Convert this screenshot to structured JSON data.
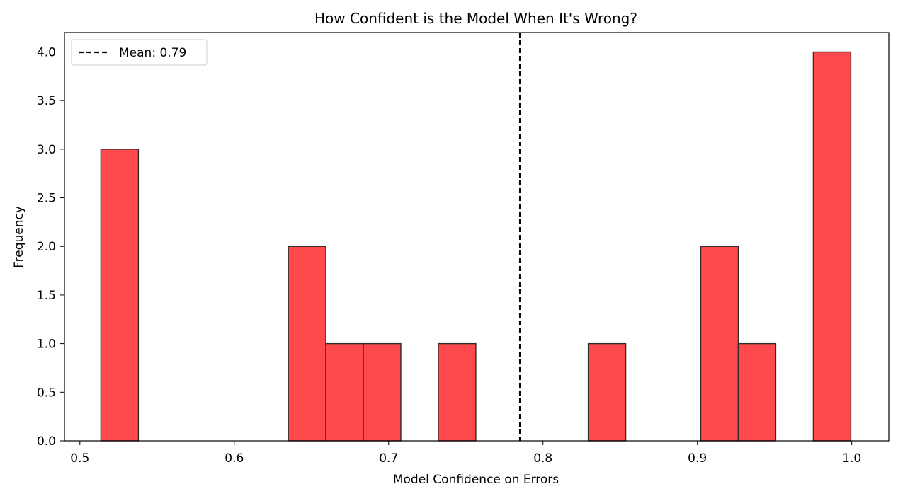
{
  "chart_data": {
    "type": "bar",
    "title": "How Confident is the Model When It's Wrong?",
    "xlabel": "Model Confidence on Errors",
    "ylabel": "Frequency",
    "xlim": [
      0.49,
      1.024
    ],
    "ylim": [
      0,
      4.2
    ],
    "xticks": [
      0.5,
      0.6,
      0.7,
      0.8,
      0.9,
      1.0
    ],
    "xtick_labels": [
      "0.5",
      "0.6",
      "0.7",
      "0.8",
      "0.9",
      "1.0"
    ],
    "yticks": [
      0.0,
      0.5,
      1.0,
      1.5,
      2.0,
      2.5,
      3.0,
      3.5,
      4.0
    ],
    "ytick_labels": [
      "0.0",
      "0.5",
      "1.0",
      "1.5",
      "2.0",
      "2.5",
      "3.0",
      "3.5",
      "4.0"
    ],
    "bins": [
      {
        "x0": 0.5136,
        "x1": 0.5379,
        "value": 3
      },
      {
        "x0": 0.635,
        "x1": 0.6593,
        "value": 2
      },
      {
        "x0": 0.6593,
        "x1": 0.6836,
        "value": 1
      },
      {
        "x0": 0.6836,
        "x1": 0.7079,
        "value": 1
      },
      {
        "x0": 0.7322,
        "x1": 0.7565,
        "value": 1
      },
      {
        "x0": 0.8293,
        "x1": 0.8536,
        "value": 1
      },
      {
        "x0": 0.9022,
        "x1": 0.9265,
        "value": 2
      },
      {
        "x0": 0.9265,
        "x1": 0.9508,
        "value": 1
      },
      {
        "x0": 0.9751,
        "x1": 0.9994,
        "value": 4
      }
    ],
    "bar_color": "#ff4a4d",
    "bar_edge_color": "#2b2b2b",
    "mean_line": {
      "value": 0.785,
      "label": "Mean: 0.79",
      "color": "#000000",
      "style": "dashed"
    },
    "legend_position": "upper-left",
    "grid": false
  }
}
